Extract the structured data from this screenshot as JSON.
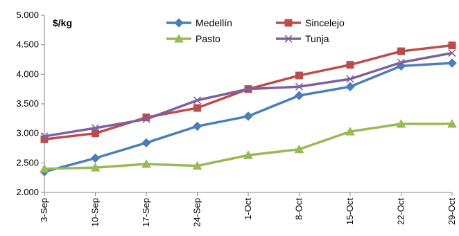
{
  "chart_data": {
    "type": "line",
    "unit_label": "$/kg",
    "categories": [
      "3-Sep",
      "10-Sep",
      "17-Sep",
      "24-Sep",
      "1-Oct",
      "8-Oct",
      "15-Oct",
      "22-Oct",
      "29-Oct"
    ],
    "ylim": [
      2000,
      5000
    ],
    "yticks": [
      2000,
      2500,
      3000,
      3500,
      4000,
      4500,
      5000
    ],
    "ytick_labels": [
      "2.000",
      "2.500",
      "3.000",
      "3.500",
      "4.000",
      "4.500",
      "5.000"
    ],
    "grid": false,
    "legend_position": "top-center",
    "series": [
      {
        "name": "Medellín",
        "color": "#4a7ebb",
        "marker": "diamond",
        "values": [
          2350,
          2580,
          2840,
          3120,
          3290,
          3640,
          3790,
          4140,
          4190
        ]
      },
      {
        "name": "Sincelejo",
        "color": "#be4b48",
        "marker": "square",
        "values": [
          2900,
          3000,
          3270,
          3430,
          3750,
          3980,
          4160,
          4390,
          4490
        ]
      },
      {
        "name": "Pasto",
        "color": "#98b954",
        "marker": "triangle",
        "values": [
          2400,
          2420,
          2480,
          2450,
          2630,
          2730,
          3030,
          3160,
          3160
        ]
      },
      {
        "name": "Tunja",
        "color": "#7d60a0",
        "marker": "cross",
        "values": [
          2950,
          3090,
          3240,
          3560,
          3750,
          3790,
          3920,
          4200,
          4360
        ]
      }
    ]
  }
}
